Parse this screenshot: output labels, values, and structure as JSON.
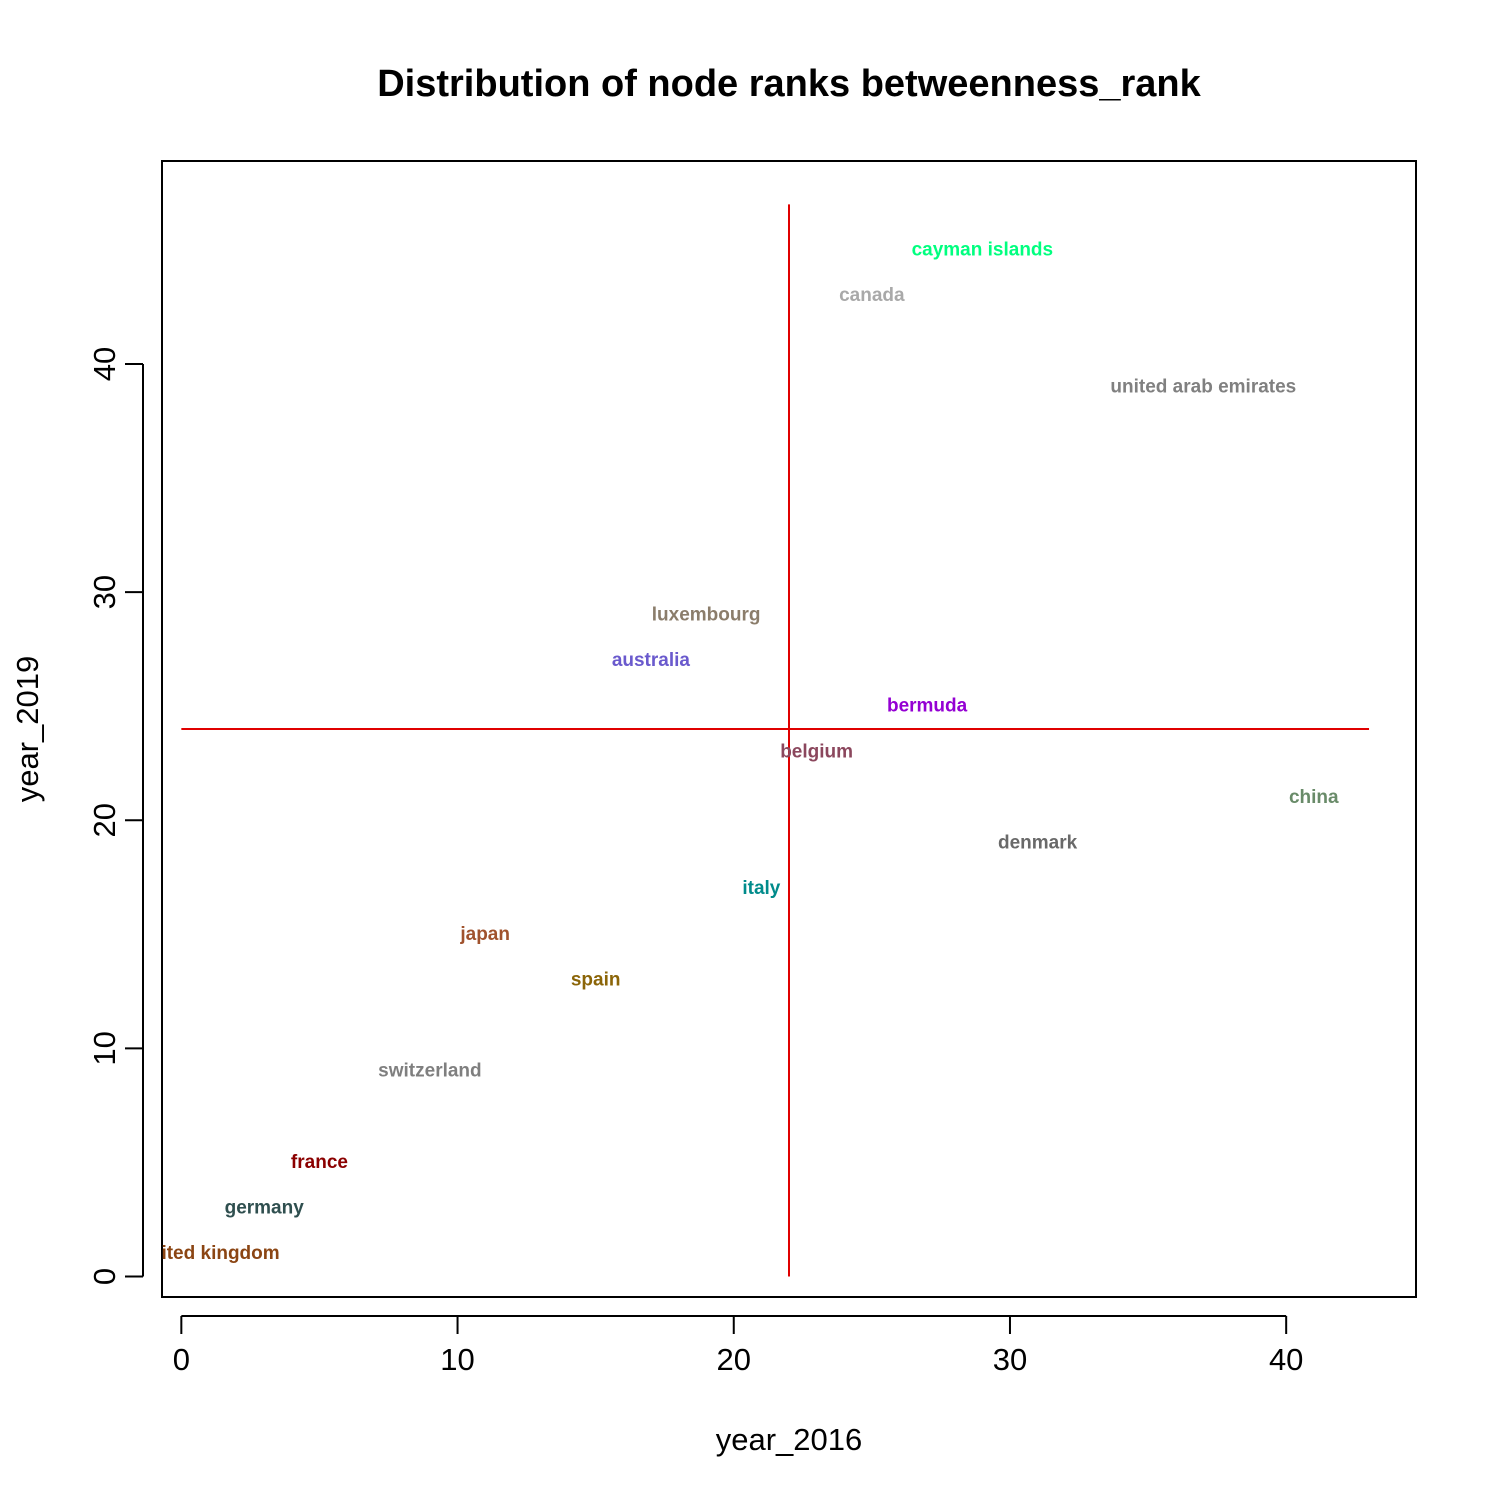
{
  "chart_data": {
    "type": "scatter",
    "title": "Distribution of node ranks betweenness_rank",
    "xlabel": "year_2016",
    "ylabel": "year_2019",
    "xlim": [
      -0.7,
      44.7
    ],
    "ylim": [
      -0.9,
      48.9
    ],
    "xticks": [
      0,
      10,
      20,
      30,
      40
    ],
    "yticks": [
      0,
      10,
      20,
      30,
      40
    ],
    "grid": false,
    "reference_lines": {
      "vline_x": 22,
      "hline_y": 24,
      "color": "#e00000"
    },
    "points": [
      {
        "label": "cayman islands",
        "x": 29,
        "y": 45,
        "color": "#00ff7f"
      },
      {
        "label": "canada",
        "x": 25,
        "y": 43,
        "color": "#a9a9a9"
      },
      {
        "label": "united arab emirates",
        "x": 37,
        "y": 39,
        "color": "#808080"
      },
      {
        "label": "luxembourg",
        "x": 19,
        "y": 29,
        "color": "#8b7d6b"
      },
      {
        "label": "australia",
        "x": 17,
        "y": 27,
        "color": "#6a5acd"
      },
      {
        "label": "bermuda",
        "x": 27,
        "y": 25,
        "color": "#9400d3"
      },
      {
        "label": "belgium",
        "x": 23,
        "y": 23,
        "color": "#8b475d"
      },
      {
        "label": "china",
        "x": 41,
        "y": 21,
        "color": "#698b69"
      },
      {
        "label": "denmark",
        "x": 31,
        "y": 19,
        "color": "#696969"
      },
      {
        "label": "italy",
        "x": 21,
        "y": 17,
        "color": "#008b8b"
      },
      {
        "label": "japan",
        "x": 11,
        "y": 15,
        "color": "#a0522d"
      },
      {
        "label": "spain",
        "x": 15,
        "y": 13,
        "color": "#8b6508"
      },
      {
        "label": "switzerland",
        "x": 9,
        "y": 9,
        "color": "#7f7f7f"
      },
      {
        "label": "france",
        "x": 5,
        "y": 5,
        "color": "#8b0000"
      },
      {
        "label": "germany",
        "x": 3,
        "y": 3,
        "color": "#2f4f4f"
      },
      {
        "label": "united kingdom",
        "x": 1,
        "y": 1,
        "color": "#8b4513"
      }
    ]
  }
}
